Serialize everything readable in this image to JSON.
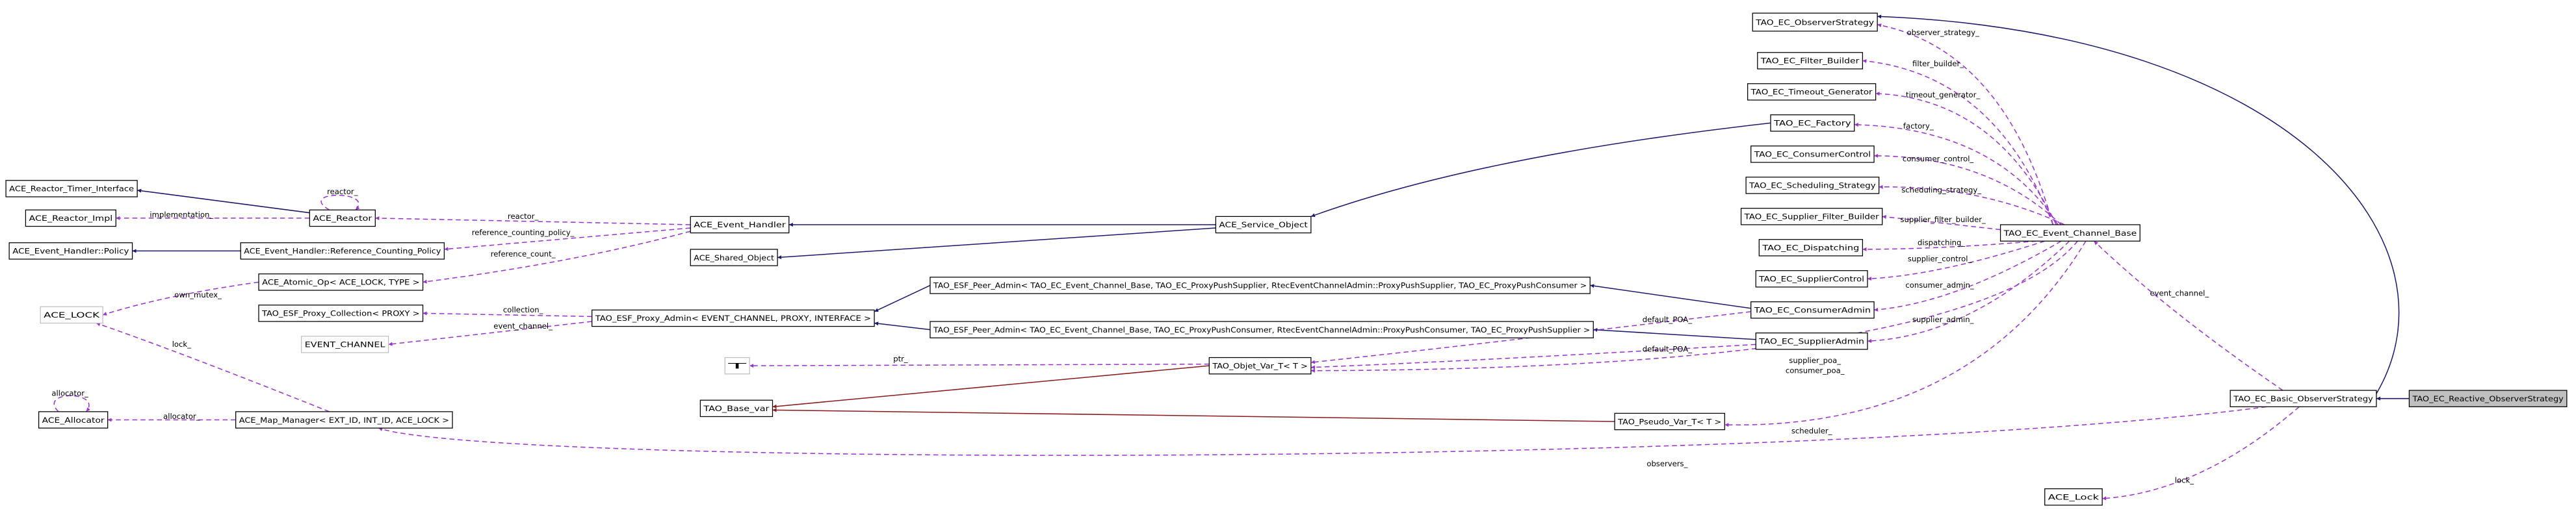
{
  "nodes": [
    {
      "label": "TAO_EC_ObserverStrategy"
    },
    {
      "label": "TAO_EC_Filter_Builder"
    },
    {
      "label": "TAO_EC_Timeout_Generator"
    },
    {
      "label": "TAO_EC_Factory"
    },
    {
      "label": "TAO_EC_ConsumerControl"
    },
    {
      "label": "TAO_EC_Scheduling_Strategy"
    },
    {
      "label": "TAO_EC_Supplier_Filter_Builder"
    },
    {
      "label": "TAO_EC_Dispatching"
    },
    {
      "label": "TAO_EC_SupplierControl"
    },
    {
      "label": "TAO_EC_ConsumerAdmin"
    },
    {
      "label": "TAO_EC_SupplierAdmin"
    },
    {
      "label": "TAO_EC_Event_Channel_Base"
    },
    {
      "label": "TAO_EC_Basic_ObserverStrategy"
    },
    {
      "label": "TAO_EC_Reactive_ObserverStrategy"
    },
    {
      "label": "ACE_Lock"
    },
    {
      "label": "ACE_Reactor_Timer_Interface"
    },
    {
      "label": "ACE_Reactor_Impl"
    },
    {
      "label": "ACE_Event_Handler::Policy"
    },
    {
      "label": "ACE_Reactor"
    },
    {
      "label": "ACE_Event_Handler::Reference_Counting_Policy"
    },
    {
      "label": "ACE_Event_Handler"
    },
    {
      "label": "ACE_Shared_Object"
    },
    {
      "label": "ACE_Service_Object"
    },
    {
      "label": "ACE_Atomic_Op< ACE_LOCK, TYPE >"
    },
    {
      "label": "ACE_LOCK"
    },
    {
      "label": "TAO_ESF_Proxy_Collection< PROXY >"
    },
    {
      "label": "EVENT_CHANNEL"
    },
    {
      "label": "TAO_ESF_Proxy_Admin< EVENT_CHANNEL, PROXY, INTERFACE >"
    },
    {
      "label": "TAO_ESF_Peer_Admin< TAO_EC_Event_Channel_Base, TAO_EC_ProxyPushSupplier, RtecEventChannelAdmin::ProxyPushSupplier, TAO_EC_ProxyPushConsumer >"
    },
    {
      "label": "TAO_ESF_Peer_Admin< TAO_EC_Event_Channel_Base, TAO_EC_ProxyPushConsumer, RtecEventChannelAdmin::ProxyPushConsumer, TAO_EC_ProxyPushSupplier >"
    },
    {
      "label": "T"
    },
    {
      "label": "TAO_Objet_Var_T< T >"
    },
    {
      "label": "TAO_Base_var"
    },
    {
      "label": "TAO_Pseudo_Var_T< T >"
    },
    {
      "label": "ACE_Allocator"
    },
    {
      "label": "ACE_Map_Manager< EXT_ID, INT_ID, ACE_LOCK >"
    }
  ],
  "edge_labels": [
    "observer_strategy_",
    "filter_builder_",
    "timeout_generator_",
    "factory_",
    "consumer_control_",
    "scheduling_strategy_",
    "supplier_filter_builder_",
    "dispatching_",
    "supplier_control_",
    "consumer_admin_",
    "supplier_admin_",
    "supplier_poa_",
    "consumer_poa_",
    "scheduler_",
    "event_channel_",
    "lock_",
    "observers_",
    "default_POA_",
    "default_POA_",
    "ptr_",
    "reactor_",
    "implementation_",
    "reactor_",
    "reference_counting_policy_",
    "reference_count_",
    "own_mutex_",
    "collection_",
    "event_channel_",
    "lock_",
    "allocator_",
    "allocator_"
  ]
}
